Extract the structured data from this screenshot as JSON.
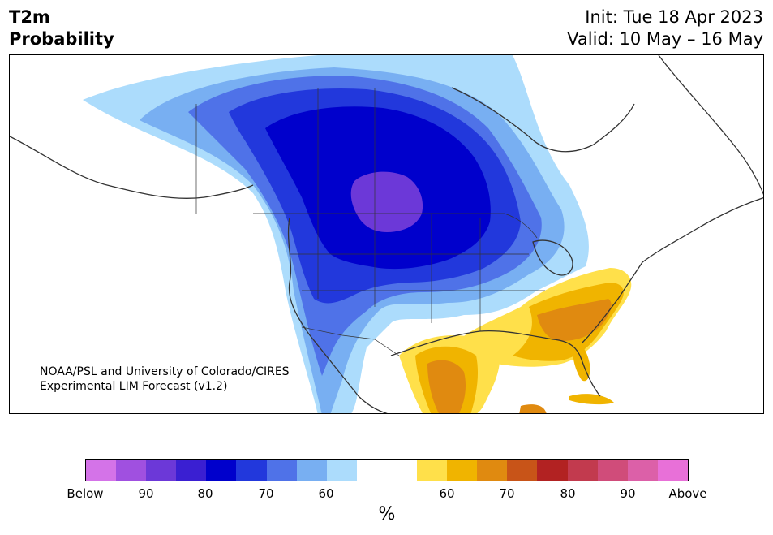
{
  "title": {
    "line1": "T2m",
    "line2": "Probability"
  },
  "init_text": "Init: Tue 18 Apr 2023",
  "valid_text": "Valid: 10 May – 16 May",
  "credit": {
    "line1": "NOAA/PSL and University of Colorado/CIRES",
    "line2": "Experimental LIM Forecast (v1.2)"
  },
  "colorbar": {
    "colors": [
      "#d473e8",
      "#a050e0",
      "#6c38d8",
      "#3a1fd2",
      "#0000cc",
      "#2238dc",
      "#4f72e8",
      "#78aff2",
      "#acdcfc",
      "#ffffff",
      "#ffffff",
      "#ffe04a",
      "#f0b400",
      "#e08a10",
      "#c85418",
      "#b22222",
      "#c23a4e",
      "#d04c7a",
      "#dc60a8",
      "#e870d8"
    ],
    "tick_labels": [
      "Below",
      "90",
      "80",
      "70",
      "60",
      "60",
      "70",
      "80",
      "90",
      "Above"
    ],
    "unit": "%"
  },
  "map_colors": {
    "below_90": "#6c38d8",
    "below_80": "#0000cc",
    "below_70": "#2238dc",
    "below_60a": "#4f72e8",
    "below_60b": "#78aff2",
    "below_50": "#acdcfc",
    "above_50": "#ffe04a",
    "above_60": "#f0b400",
    "above_70": "#e08a10",
    "land_outline": "#333333",
    "ocean": "#ffffff"
  }
}
